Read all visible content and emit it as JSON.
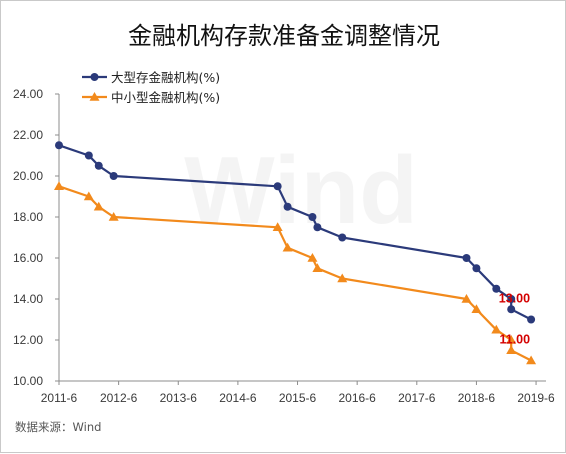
{
  "chart_data": {
    "type": "line",
    "title": "金融机构存款准备金调整情况",
    "xlabel": "",
    "ylabel": "",
    "x_tick_labels": [
      "2011-6",
      "2012-6",
      "2013-6",
      "2014-6",
      "2015-6",
      "2016-6",
      "2017-6",
      "2018-6",
      "2019-6"
    ],
    "y_tick_labels": [
      "10.00",
      "12.00",
      "14.00",
      "16.00",
      "18.00",
      "20.00",
      "22.00",
      "24.00"
    ],
    "ylim": [
      10,
      24
    ],
    "xlim": [
      "2011-06",
      "2019-08"
    ],
    "grid": false,
    "legend_position": "top-left",
    "series": [
      {
        "name": "大型存金融机构(%)",
        "color": "#2b3a7a",
        "marker": "circle",
        "x": [
          "2011-06",
          "2011-12",
          "2012-02",
          "2012-05",
          "2015-02",
          "2015-04",
          "2015-09",
          "2015-10",
          "2016-03",
          "2018-04",
          "2018-06",
          "2018-10",
          "2019-01",
          "2019-01",
          "2019-05"
        ],
        "values": [
          21.5,
          21.0,
          20.5,
          20.0,
          19.5,
          18.5,
          18.0,
          17.5,
          17.0,
          16.0,
          15.5,
          14.5,
          14.0,
          13.5,
          13.0
        ]
      },
      {
        "name": "中小型金融机构(%)",
        "color": "#f28a1c",
        "marker": "triangle",
        "x": [
          "2011-06",
          "2011-12",
          "2012-02",
          "2012-05",
          "2015-02",
          "2015-04",
          "2015-09",
          "2015-10",
          "2016-03",
          "2018-04",
          "2018-06",
          "2018-10",
          "2019-01",
          "2019-01",
          "2019-05"
        ],
        "values": [
          19.5,
          19.0,
          18.5,
          18.0,
          17.5,
          16.5,
          16.0,
          15.5,
          15.0,
          14.0,
          13.5,
          12.5,
          12.0,
          11.5,
          11.0
        ]
      }
    ],
    "annotations": [
      {
        "text": "13.00",
        "series": 0
      },
      {
        "text": "11.00",
        "series": 1
      }
    ],
    "source": "数据来源：Wind",
    "watermark": "Wind"
  }
}
